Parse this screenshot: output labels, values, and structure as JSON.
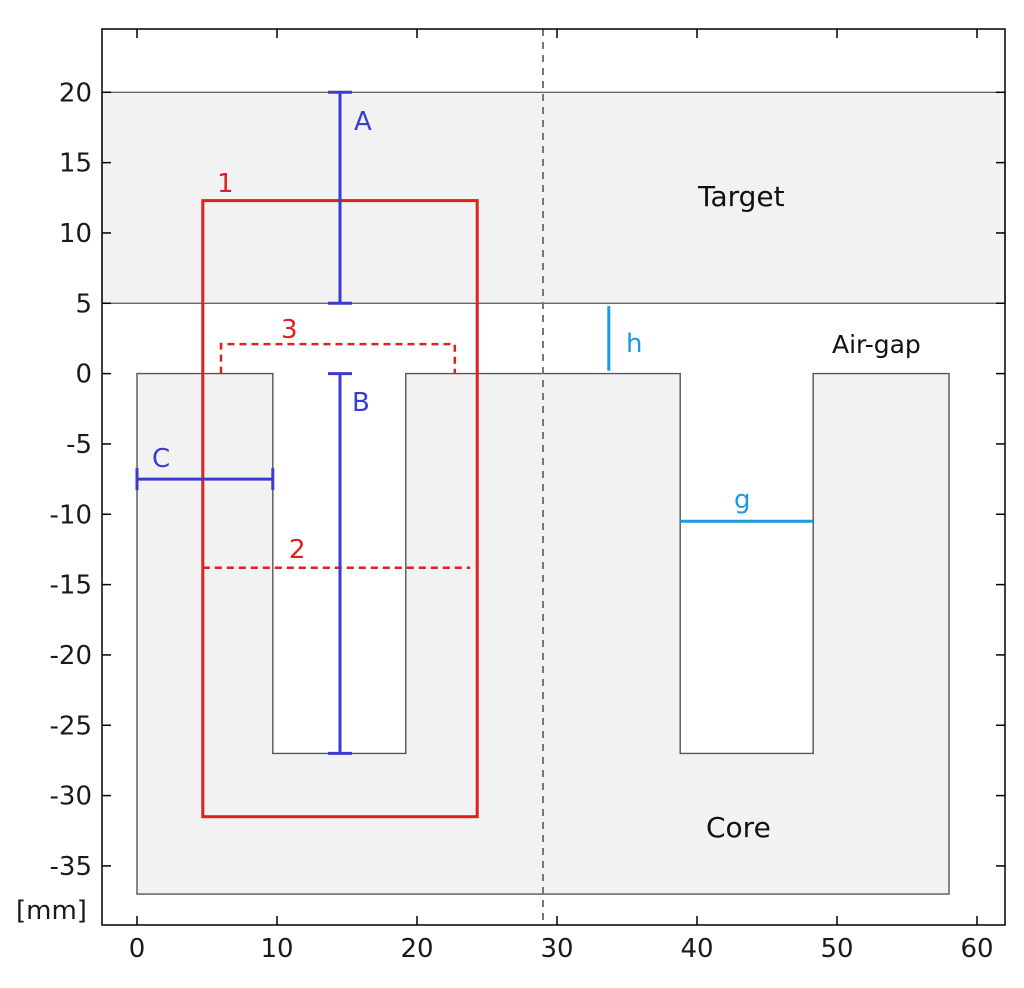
{
  "axes": {
    "x_range": [
      -2.5,
      62
    ],
    "y_range": [
      -39.2,
      24.5
    ],
    "x_ticks": [
      0,
      10,
      20,
      30,
      40,
      50,
      60
    ],
    "y_ticks": [
      20,
      15,
      10,
      5,
      0,
      -5,
      -10,
      -15,
      -20,
      -25,
      -30,
      -35
    ],
    "unit_label": "[mm]"
  },
  "colors": {
    "region_fill": "#f2f2f2",
    "outline": "#555555",
    "red": "#e02020",
    "blue": "#3b3bd1",
    "cyan": "#1a9ae0",
    "axis": "#000000"
  },
  "regions": {
    "target": {
      "label": "Target",
      "y_bottom": 5,
      "y_top": 20
    },
    "core": {
      "label": "Core",
      "outline_mm": [
        [
          0,
          0
        ],
        [
          9.7,
          0
        ],
        [
          9.7,
          -27
        ],
        [
          19.2,
          -27
        ],
        [
          19.2,
          0
        ],
        [
          38.8,
          0
        ],
        [
          38.8,
          -27
        ],
        [
          48.3,
          -27
        ],
        [
          48.3,
          0
        ],
        [
          58,
          0
        ],
        [
          58,
          -37
        ],
        [
          0,
          -37
        ]
      ]
    },
    "airgap": {
      "label": "Air-gap"
    }
  },
  "symmetry_line_x": 29,
  "red_annotations": {
    "rect": {
      "label": "1",
      "x0": 4.7,
      "x1": 24.3,
      "y0": -31.5,
      "y1": 12.3
    },
    "line2": {
      "label": "2",
      "x0": 4.7,
      "x1": 23.8,
      "y": -13.8
    },
    "bracket3": {
      "label": "3",
      "x0": 6,
      "x1": 22.7,
      "y_top": 2.1,
      "y_bottom": 0
    }
  },
  "blue_dimensions": {
    "A": {
      "label": "A",
      "x": 14.5,
      "y_from": 5,
      "y_to": 20
    },
    "B": {
      "label": "B",
      "x": 14.5,
      "y_from": -27,
      "y_to": 0
    },
    "C": {
      "label": "C",
      "y": -7.5,
      "x_from": 0,
      "x_to": 9.7
    }
  },
  "cyan_dimensions": {
    "h": {
      "label": "h",
      "x": 33.7,
      "y_from": 0.2,
      "y_to": 4.8
    },
    "g": {
      "label": "g",
      "y": -10.5,
      "x_from": 38.8,
      "x_to": 48.3
    }
  }
}
